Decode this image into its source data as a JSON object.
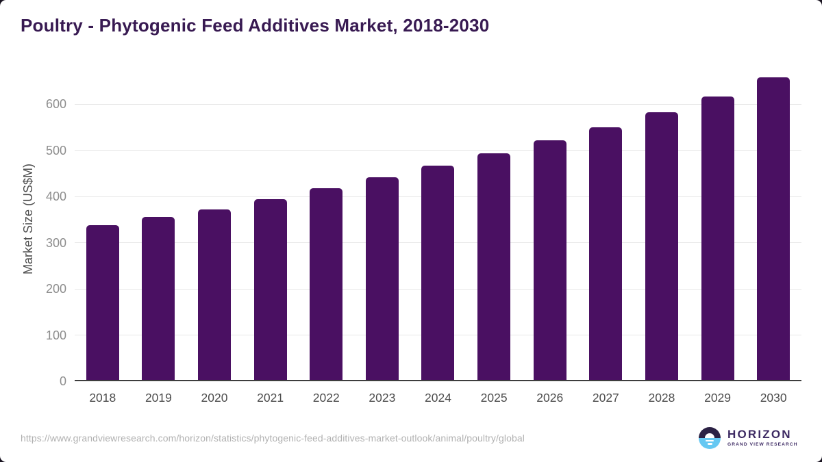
{
  "chart_data": {
    "type": "bar",
    "title": "Poultry - Phytogenic Feed Additives Market, 2018-2030",
    "categories": [
      "2018",
      "2019",
      "2020",
      "2021",
      "2022",
      "2023",
      "2024",
      "2025",
      "2026",
      "2027",
      "2028",
      "2029",
      "2030"
    ],
    "values": [
      338,
      355,
      372,
      394,
      418,
      441,
      466,
      493,
      521,
      550,
      582,
      617,
      658
    ],
    "xlabel": "",
    "ylabel": "Market Size (US$M)",
    "yticks": [
      0,
      100,
      200,
      300,
      400,
      500,
      600
    ],
    "ylim": [
      0,
      680
    ],
    "grid": true,
    "legend": false
  },
  "footer": {
    "source_url": "https://www.grandviewresearch.com/horizon/statistics/phytogenic-feed-additives-market-outlook/animal/poultry/global",
    "logo": {
      "brand": "HORIZON",
      "subtitle": "GRAND VIEW RESEARCH"
    }
  },
  "colors": {
    "bar": "#4a1062",
    "title": "#381a52",
    "x_tick_labels": "#4d4d4d",
    "y_tick_labels": "#8d8d8d",
    "gridline": "#e7e7e7",
    "axis_line": "#3d3d3d",
    "source_text": "#b1b1b1",
    "logo_navy": "#2b2144",
    "logo_blue": "#66c8f2",
    "logo_text": "#3d2a63",
    "corner_background": "#18121f"
  }
}
